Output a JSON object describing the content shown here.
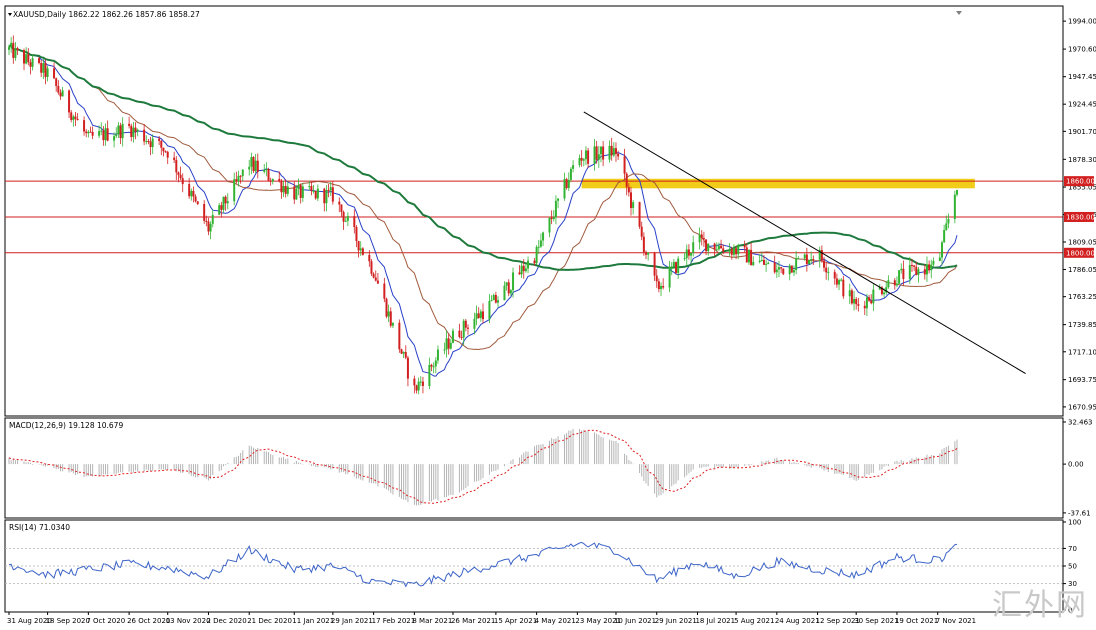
{
  "header": {
    "symbol_line": "XAUUSD,Daily  1862.22 1862.26 1857.86 1858.27",
    "macd_label": "MACD(12,26,9) 19.128 10.679",
    "rsi_label": "RSI(14) 71.0340"
  },
  "watermark": "汇外网",
  "colors": {
    "bull": "#32b432",
    "bear": "#d22020",
    "ma_fast": "#2840c8",
    "ma_mid": "#a05a3c",
    "ma_slow": "#1e7a3c",
    "level_line": "#d21e1e",
    "level_label_bg": "#d21e1e",
    "zone": "#f0c800",
    "trendline": "#000000",
    "macd_hist": "#b4b4b4",
    "macd_signal": "#e02020",
    "rsi_line": "#3c64c8"
  },
  "chart_data": [
    {
      "type": "candlestick",
      "name": "main",
      "y_ticks": [
        1994.0,
        1970.6,
        1947.45,
        1924.45,
        1901.7,
        1878.3,
        1855.05,
        1832.05,
        1809.05,
        1786.05,
        1763.25,
        1739.85,
        1717.1,
        1693.75,
        1670.95
      ],
      "ylim": [
        1665,
        2005
      ],
      "current_price": 1858.27,
      "levels": [
        {
          "value": 1860.0,
          "label": "1860.00"
        },
        {
          "value": 1830.0,
          "label": "1830.00"
        },
        {
          "value": 1800.0,
          "label": "1800.00"
        }
      ],
      "zone": {
        "from_date": "25 May 2021",
        "to_date": "15 Nov 2021",
        "low": 1854,
        "high": 1862
      },
      "trendline": {
        "start": {
          "date": "26 May 2021",
          "value": 1918
        },
        "end": {
          "date": "20 Nov 2021",
          "value": 1724
        }
      },
      "x_ticks": [
        "31 Aug 2020",
        "18 Sep 2020",
        "7 Oct 2020",
        "26 Oct 2020",
        "13 Nov 2020",
        "2 Dec 2020",
        "21 Dec 2020",
        "11 Jan 2021",
        "29 Jan 2021",
        "17 Feb 2021",
        "8 Mar 2021",
        "26 Mar 2021",
        "15 Apr 2021",
        "4 May 2021",
        "23 May 2021",
        "10 Jun 2021",
        "29 Jun 2021",
        "18 Jul 2021",
        "5 Aug 2021",
        "24 Aug 2021",
        "12 Sep 2021",
        "30 Sep 2021",
        "19 Oct 2021",
        "7 Nov 2021"
      ],
      "anchors": [
        {
          "date": "31 Aug 2020",
          "close": 1970
        },
        {
          "date": "18 Sep 2020",
          "close": 1950
        },
        {
          "date": "7 Oct 2020",
          "close": 1895
        },
        {
          "date": "26 Oct 2020",
          "close": 1905
        },
        {
          "date": "13 Nov 2020",
          "close": 1885
        },
        {
          "date": "2 Dec 2020",
          "close": 1820
        },
        {
          "date": "21 Dec 2020",
          "close": 1875
        },
        {
          "date": "11 Jan 2021",
          "close": 1850
        },
        {
          "date": "29 Jan 2021",
          "close": 1848
        },
        {
          "date": "17 Feb 2021",
          "close": 1785
        },
        {
          "date": "8 Mar 2021",
          "close": 1685
        },
        {
          "date": "26 Mar 2021",
          "close": 1730
        },
        {
          "date": "15 Apr 2021",
          "close": 1760
        },
        {
          "date": "4 May 2021",
          "close": 1800
        },
        {
          "date": "23 May 2021",
          "close": 1880
        },
        {
          "date": "10 Jun 2021",
          "close": 1885
        },
        {
          "date": "29 Jun 2021",
          "close": 1770
        },
        {
          "date": "18 Jul 2021",
          "close": 1810
        },
        {
          "date": "5 Aug 2021",
          "close": 1802
        },
        {
          "date": "24 Aug 2021",
          "close": 1785
        },
        {
          "date": "12 Sep 2021",
          "close": 1800
        },
        {
          "date": "30 Sep 2021",
          "close": 1755
        },
        {
          "date": "19 Oct 2021",
          "close": 1780
        },
        {
          "date": "7 Nov 2021",
          "close": 1790
        },
        {
          "date": "16 Nov 2021",
          "close": 1858
        }
      ],
      "grid": false
    },
    {
      "type": "macd",
      "name": "macd",
      "y_ticks": [
        32.463,
        0.0,
        -37.61
      ],
      "y_tick_labels": [
        "32.463",
        "0.00",
        "-37.61"
      ],
      "ylim": [
        -40,
        34
      ],
      "anchors": [
        {
          "date": "31 Aug 2020",
          "value": 4
        },
        {
          "date": "18 Sep 2020",
          "value": -2
        },
        {
          "date": "7 Oct 2020",
          "value": -10
        },
        {
          "date": "26 Oct 2020",
          "value": -6
        },
        {
          "date": "13 Nov 2020",
          "value": -4
        },
        {
          "date": "2 Dec 2020",
          "value": -12
        },
        {
          "date": "21 Dec 2020",
          "value": 14
        },
        {
          "date": "11 Jan 2021",
          "value": 2
        },
        {
          "date": "29 Jan 2021",
          "value": -4
        },
        {
          "date": "17 Feb 2021",
          "value": -15
        },
        {
          "date": "8 Mar 2021",
          "value": -32
        },
        {
          "date": "26 Mar 2021",
          "value": -24
        },
        {
          "date": "15 Apr 2021",
          "value": -5
        },
        {
          "date": "4 May 2021",
          "value": 14
        },
        {
          "date": "23 May 2021",
          "value": 28
        },
        {
          "date": "10 Jun 2021",
          "value": 18
        },
        {
          "date": "29 Jun 2021",
          "value": -26
        },
        {
          "date": "18 Jul 2021",
          "value": -2
        },
        {
          "date": "5 Aug 2021",
          "value": -3
        },
        {
          "date": "24 Aug 2021",
          "value": 4
        },
        {
          "date": "12 Sep 2021",
          "value": -3
        },
        {
          "date": "30 Sep 2021",
          "value": -12
        },
        {
          "date": "19 Oct 2021",
          "value": 2
        },
        {
          "date": "7 Nov 2021",
          "value": 8
        },
        {
          "date": "16 Nov 2021",
          "value": 19
        }
      ]
    },
    {
      "type": "rsi",
      "name": "rsi",
      "y_ticks": [
        100,
        70,
        50,
        30,
        0
      ],
      "ylim": [
        0,
        100
      ],
      "reference_levels": [
        70,
        50,
        30
      ],
      "anchors": [
        {
          "date": "31 Aug 2020",
          "value": 52
        },
        {
          "date": "18 Sep 2020",
          "value": 40
        },
        {
          "date": "7 Oct 2020",
          "value": 46
        },
        {
          "date": "26 Oct 2020",
          "value": 52
        },
        {
          "date": "13 Nov 2020",
          "value": 48
        },
        {
          "date": "2 Dec 2020",
          "value": 38
        },
        {
          "date": "21 Dec 2020",
          "value": 68
        },
        {
          "date": "11 Jan 2021",
          "value": 46
        },
        {
          "date": "29 Jan 2021",
          "value": 50
        },
        {
          "date": "17 Feb 2021",
          "value": 32
        },
        {
          "date": "8 Mar 2021",
          "value": 28
        },
        {
          "date": "26 Mar 2021",
          "value": 40
        },
        {
          "date": "15 Apr 2021",
          "value": 52
        },
        {
          "date": "4 May 2021",
          "value": 62
        },
        {
          "date": "23 May 2021",
          "value": 76
        },
        {
          "date": "10 Jun 2021",
          "value": 68
        },
        {
          "date": "29 Jun 2021",
          "value": 34
        },
        {
          "date": "18 Jul 2021",
          "value": 55
        },
        {
          "date": "5 Aug 2021",
          "value": 38
        },
        {
          "date": "24 Aug 2021",
          "value": 55
        },
        {
          "date": "12 Sep 2021",
          "value": 46
        },
        {
          "date": "30 Sep 2021",
          "value": 40
        },
        {
          "date": "19 Oct 2021",
          "value": 60
        },
        {
          "date": "7 Nov 2021",
          "value": 56
        },
        {
          "date": "16 Nov 2021",
          "value": 72
        }
      ]
    }
  ]
}
